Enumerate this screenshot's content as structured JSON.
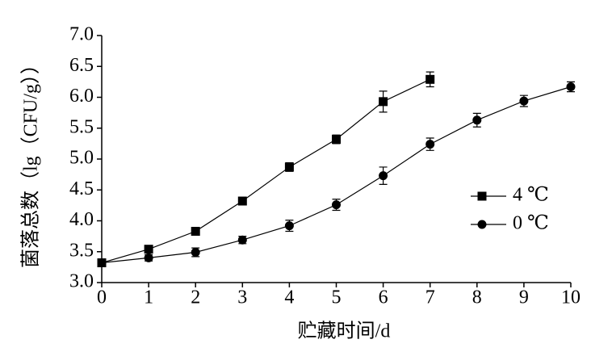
{
  "chart_data": {
    "type": "line",
    "x_label": "贮藏时间/d",
    "y_label": "菌落总数（lg（CFU/g））",
    "xlim": [
      0,
      10
    ],
    "xticks": [
      0,
      1,
      2,
      3,
      4,
      5,
      6,
      7,
      8,
      9,
      10
    ],
    "ylim": [
      3.0,
      7.0
    ],
    "yticks": [
      {
        "value": 3.0,
        "label": "3.0"
      },
      3.5,
      {
        "value": 4.0,
        "label": "4.0"
      },
      4.5,
      {
        "value": 5.0,
        "label": "5.0"
      },
      5.5,
      {
        "value": 6.0,
        "label": "6.0"
      },
      6.5,
      {
        "value": 7.0,
        "label": "7.0"
      }
    ],
    "grid": false,
    "legend": "right",
    "series": [
      {
        "name": "4 ℃",
        "color": "#000000",
        "marker": "square",
        "x": [
          0,
          1,
          2,
          3,
          4,
          5,
          6,
          7
        ],
        "values": [
          3.32,
          3.54,
          3.83,
          4.32,
          4.87,
          5.32,
          5.93,
          6.29
        ],
        "errors": [
          0.04,
          0.05,
          0.05,
          0.04,
          0.07,
          0.07,
          0.17,
          0.12
        ]
      },
      {
        "name": "0 ℃",
        "color": "#000000",
        "marker": "circle",
        "x": [
          0,
          1,
          2,
          3,
          4,
          5,
          6,
          7,
          8,
          9,
          10
        ],
        "values": [
          3.32,
          3.4,
          3.49,
          3.69,
          3.92,
          4.26,
          4.73,
          5.24,
          5.63,
          5.94,
          6.17
        ],
        "errors": [
          0.04,
          0.05,
          0.07,
          0.06,
          0.09,
          0.09,
          0.14,
          0.1,
          0.11,
          0.09,
          0.08
        ]
      }
    ]
  }
}
